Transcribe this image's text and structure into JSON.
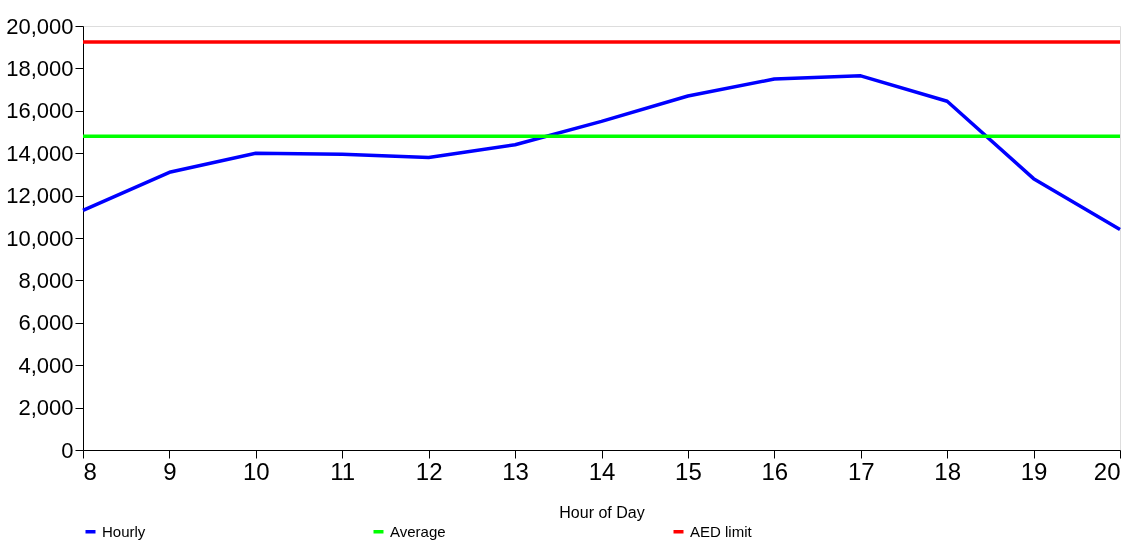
{
  "chart_data": {
    "type": "line",
    "xlabel": "Hour of Day",
    "x": [
      8,
      9,
      10,
      11,
      12,
      13,
      14,
      15,
      16,
      17,
      18,
      19,
      20
    ],
    "series": [
      {
        "name": "Hourly",
        "color": "#0000ff",
        "values": [
          11300,
          13100,
          14000,
          13950,
          13800,
          14400,
          15500,
          16700,
          17500,
          17650,
          16450,
          12800,
          10400
        ]
      },
      {
        "name": "Average",
        "color": "#00ff00",
        "values": [
          14800,
          14800,
          14800,
          14800,
          14800,
          14800,
          14800,
          14800,
          14800,
          14800,
          14800,
          14800,
          14800
        ]
      },
      {
        "name": "AED limit",
        "color": "#ff0000",
        "values": [
          19250,
          19250,
          19250,
          19250,
          19250,
          19250,
          19250,
          19250,
          19250,
          19250,
          19250,
          19250,
          19250
        ]
      }
    ],
    "xlim": [
      8,
      20
    ],
    "xticks": [
      8,
      9,
      10,
      11,
      12,
      13,
      14,
      15,
      16,
      17,
      18,
      19,
      20
    ],
    "ylim": [
      0,
      20000
    ],
    "yticks": [
      0,
      {
        "value": 2000,
        "label": "2,000"
      },
      {
        "value": 4000,
        "label": "4,000"
      },
      {
        "value": 6000,
        "label": "6,000"
      },
      {
        "value": 8000,
        "label": "8,000"
      },
      {
        "value": 10000,
        "label": "10,000"
      },
      {
        "value": 12000,
        "label": "12,000"
      },
      {
        "value": 14000,
        "label": "14,000"
      },
      {
        "value": 16000,
        "label": "16,000"
      },
      {
        "value": 18000,
        "label": "18,000"
      },
      {
        "value": 20000,
        "label": "20,000"
      }
    ],
    "grid": false,
    "legend": "bottom",
    "marker": "none",
    "line_style": "solid"
  }
}
